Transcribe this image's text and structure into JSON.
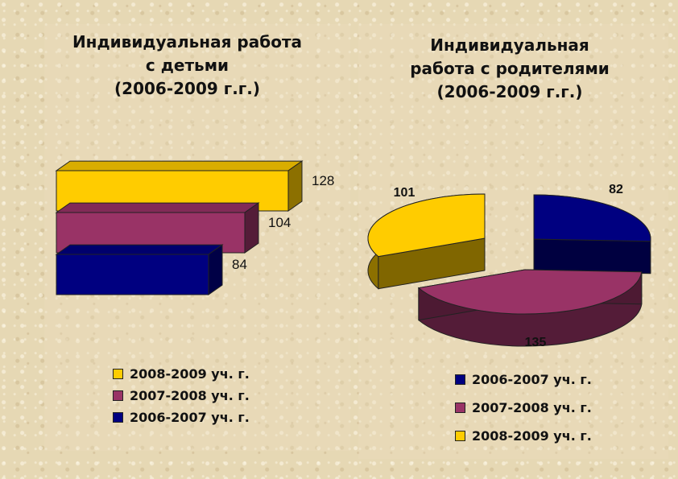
{
  "chart_data": [
    {
      "type": "bar",
      "orientation": "horizontal-3d",
      "title": "Индивидуальная работа\nс детьми\n(2006-2009 г.г.)",
      "series": [
        {
          "name": "2008-2009 уч. г.",
          "value": 128,
          "color": "#ffcc00"
        },
        {
          "name": "2007-2008 уч. г.",
          "value": 104,
          "color": "#993366"
        },
        {
          "name": "2006-2007 уч. г.",
          "value": 84,
          "color": "#000080"
        }
      ],
      "legend_position": "bottom"
    },
    {
      "type": "pie",
      "style": "3d-exploded",
      "title": "Индивидуальная\nработа с родителями\n(2006-2009 г.г.)",
      "series": [
        {
          "name": "2006-2007 уч. г.",
          "value": 82,
          "color": "#000080"
        },
        {
          "name": "2007-2008 уч. г.",
          "value": 135,
          "color": "#993366"
        },
        {
          "name": "2008-2009 уч. г.",
          "value": 101,
          "color": "#ffcc00"
        }
      ],
      "legend_position": "bottom"
    }
  ]
}
